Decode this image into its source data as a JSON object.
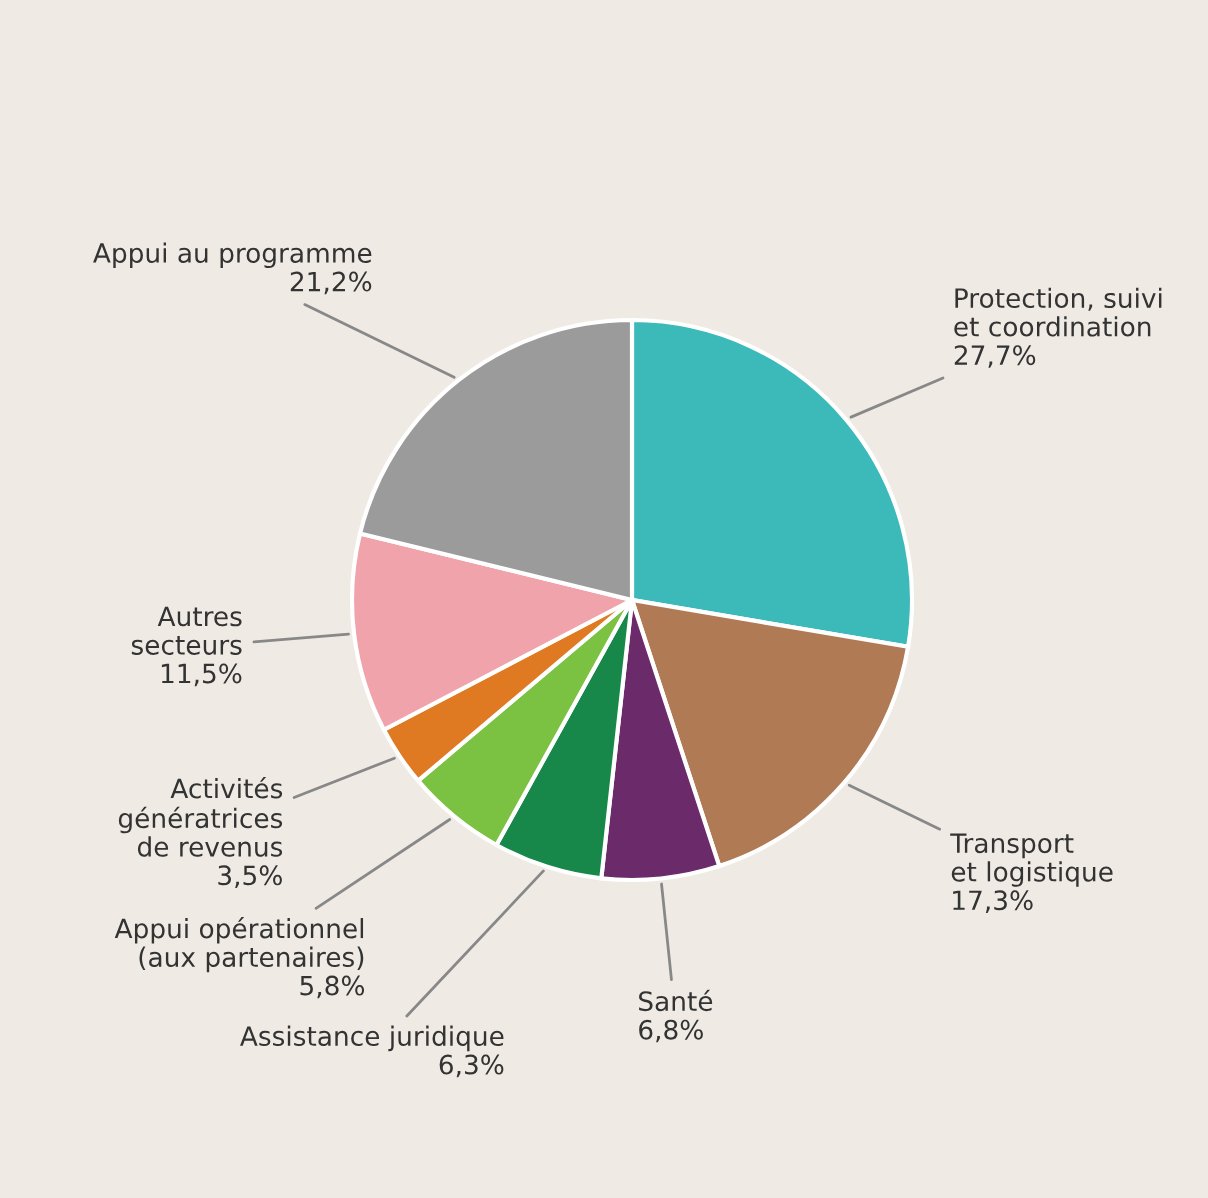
{
  "chart_data": {
    "type": "pie",
    "categories": [
      "Protection, suivi\net coordination",
      "Transport\net logistique",
      "Santé",
      "Assistance juridique",
      "Appui opérationnel\n(aux partenaires)",
      "Activités\ngénératrices\nde revenus",
      "Autres\nsecteurs",
      "Appui au programme"
    ],
    "values": [
      27.7,
      17.3,
      6.8,
      6.3,
      5.8,
      3.5,
      11.5,
      21.2
    ],
    "value_labels": [
      "27,7%",
      "17,3%",
      "6,8%",
      "6,3%",
      "5,8%",
      "3,5%",
      "11,5%",
      "21,2%"
    ],
    "colors": [
      "#3cb9b9",
      "#b07a55",
      "#6b2b6b",
      "#17884a",
      "#7cc242",
      "#e07a22",
      "#f0a3aa",
      "#9b9b9b"
    ]
  }
}
